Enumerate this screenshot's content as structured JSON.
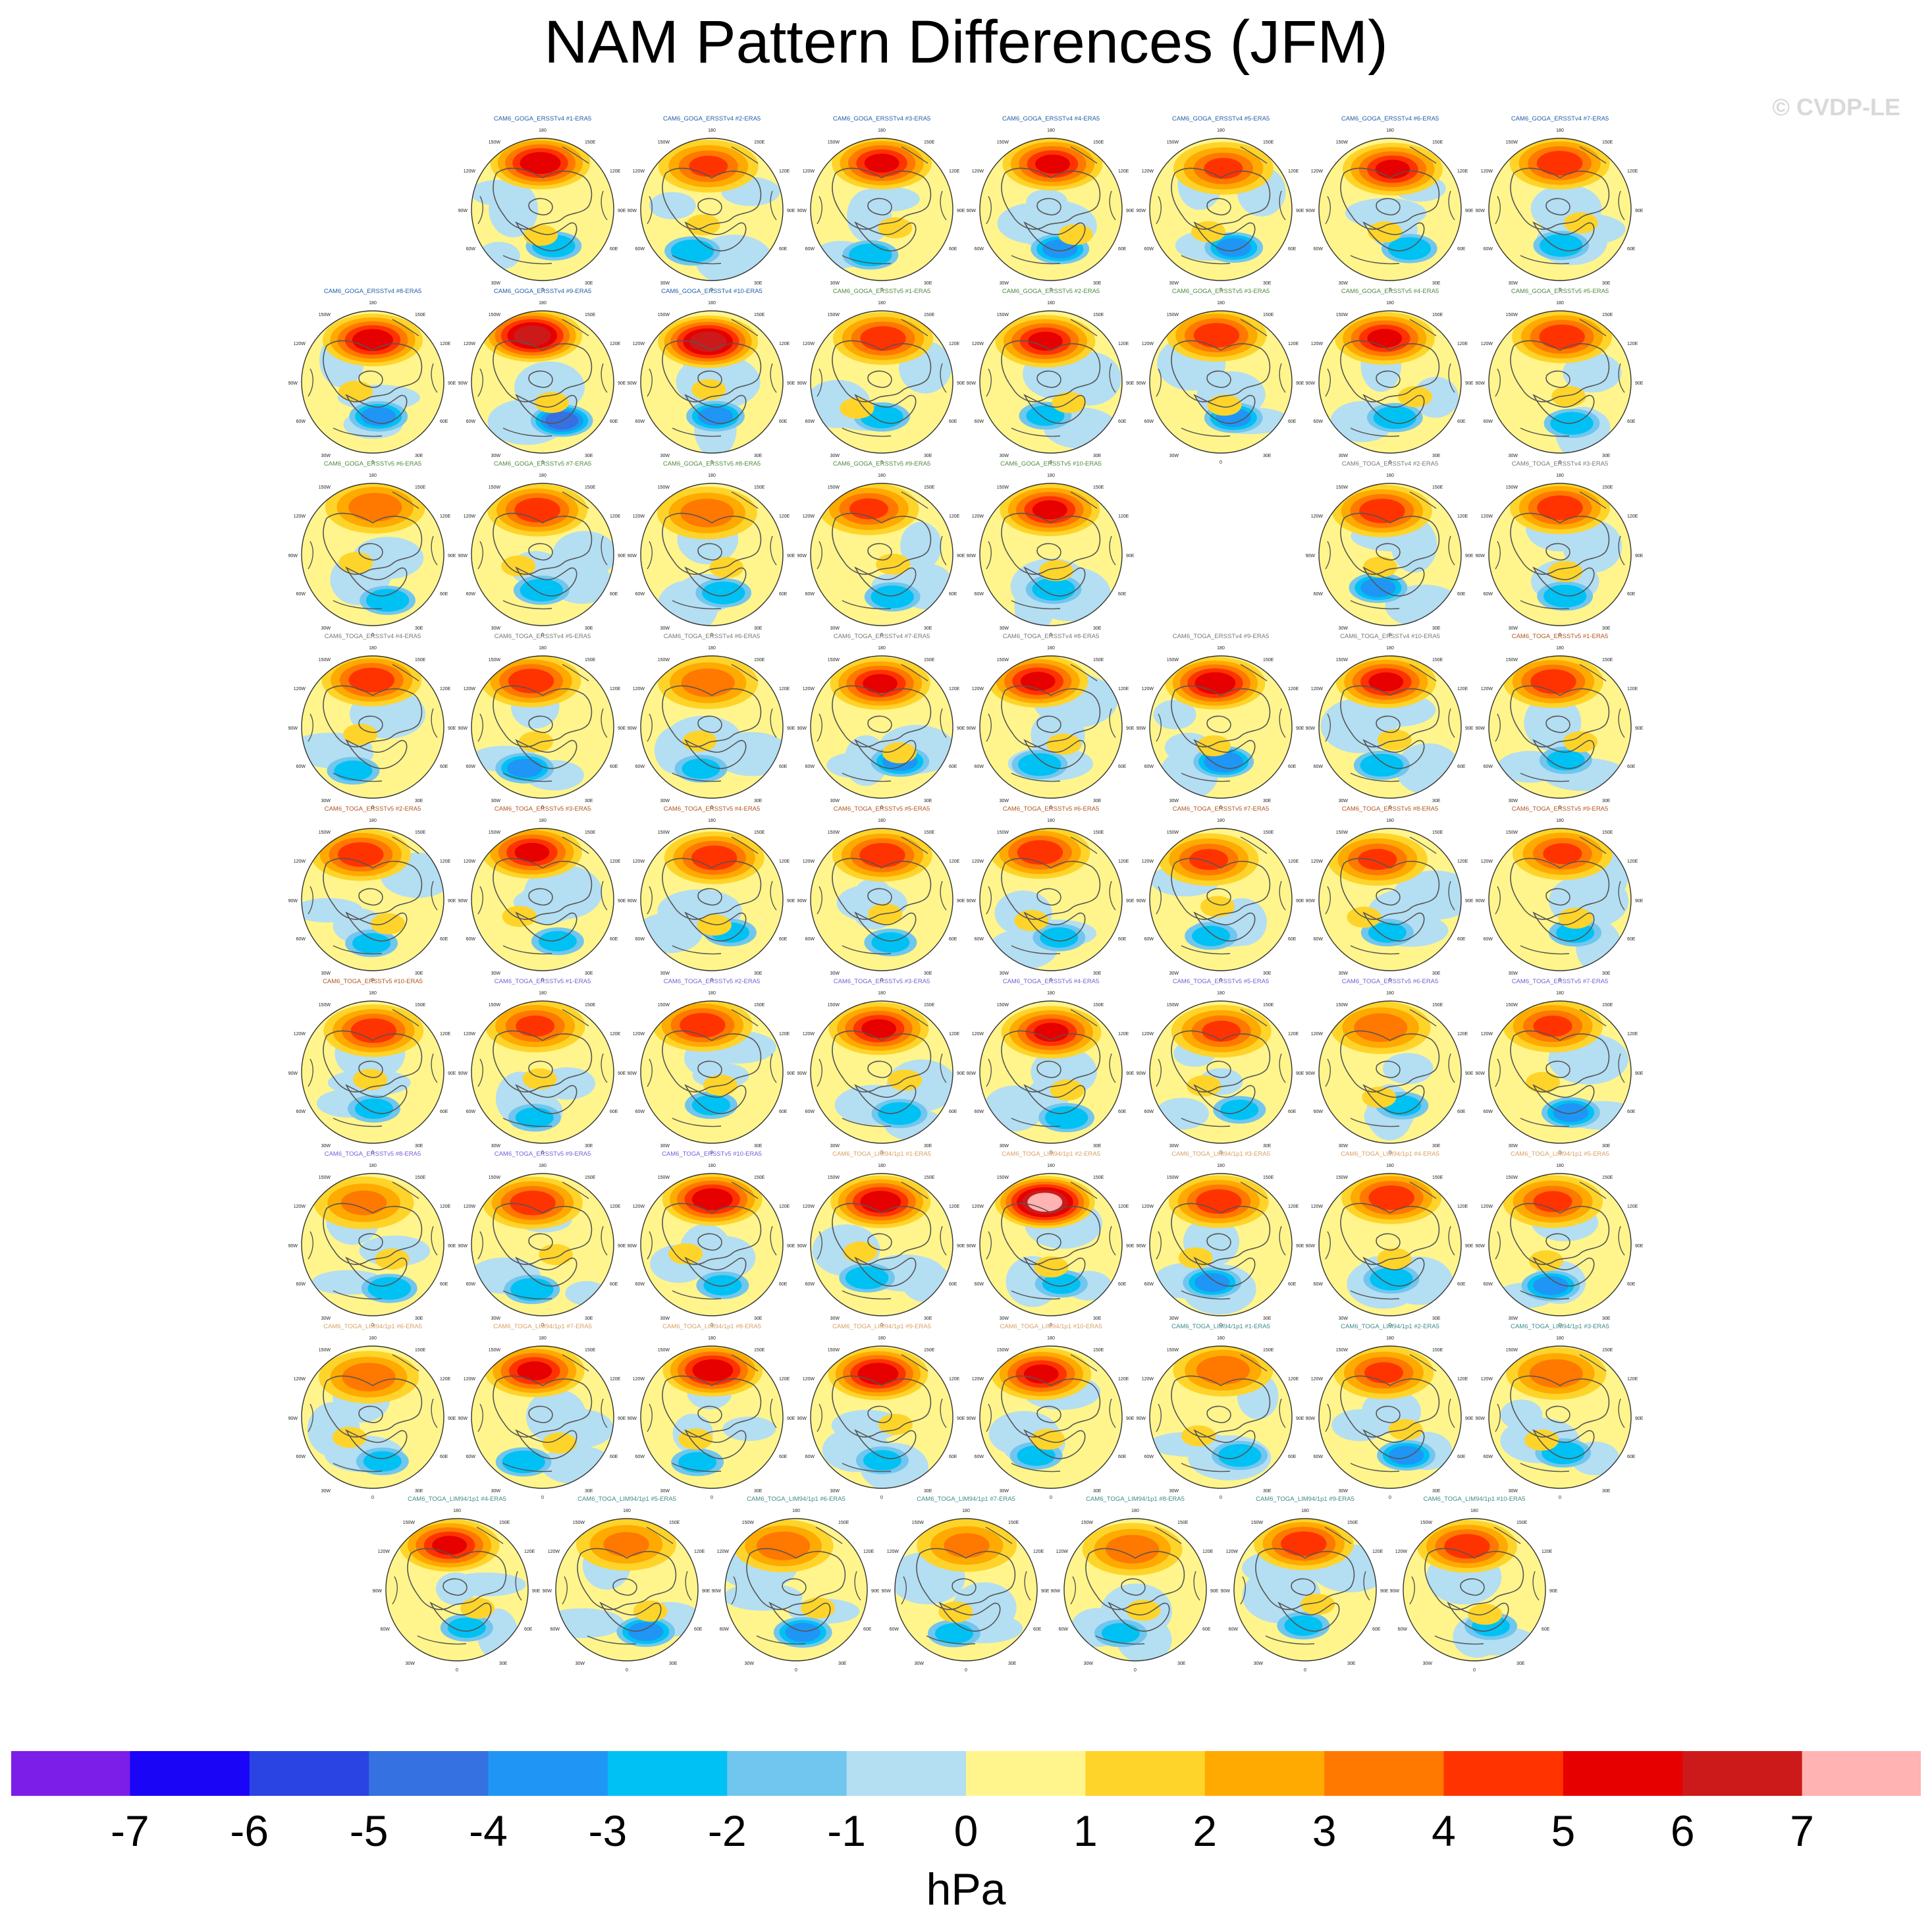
{
  "title": "NAM Pattern Differences (JFM)",
  "watermark": "© CVDP-LE",
  "units": "hPa",
  "colorbar": {
    "ticks": [
      "-7",
      "-6",
      "-5",
      "-4",
      "-3",
      "-2",
      "-1",
      "0",
      "1",
      "2",
      "3",
      "4",
      "5",
      "6",
      "7"
    ],
    "colors": [
      "#7d1de8",
      "#1a05f7",
      "#2a44e3",
      "#3571e0",
      "#1f96f5",
      "#00c1f4",
      "#70c6ee",
      "#b4def2",
      "#fff58c",
      "#ffd42a",
      "#ffaa00",
      "#ff7800",
      "#ff3300",
      "#e60000",
      "#cc1a1a",
      "#ffb3b3"
    ]
  },
  "map_labels": {
    "top": "180",
    "bottom": "0",
    "tl": "150W",
    "tr": "150E",
    "ul": "120W",
    "ur": "120E",
    "ml": "90W",
    "mr": "90E",
    "ll": "60W",
    "lr": "60E",
    "bl": "30W",
    "br": "30E"
  },
  "chart_data": {
    "type": "heatmap",
    "title": "NAM Pattern Differences (JFM)",
    "colorbar_label": "hPa",
    "colorbar_range": [
      -7,
      7
    ],
    "colorbar_interval": 1,
    "projection": "north polar stereographic",
    "panels": [
      {
        "label": "CAM6_GOGA_ERSSTv4 #1-ERA5",
        "group": "goga4",
        "max": 5.5,
        "min": -2.5
      },
      {
        "label": "CAM6_GOGA_ERSSTv4 #2-ERA5",
        "group": "goga4",
        "max": 4.0,
        "min": -2.5
      },
      {
        "label": "CAM6_GOGA_ERSSTv4 #3-ERA5",
        "group": "goga4",
        "max": 5.0,
        "min": -2.5
      },
      {
        "label": "CAM6_GOGA_ERSSTv4 #4-ERA5",
        "group": "goga4",
        "max": 5.0,
        "min": -3.0
      },
      {
        "label": "CAM6_GOGA_ERSSTv4 #5-ERA5",
        "group": "goga4",
        "max": 4.0,
        "min": -3.0
      },
      {
        "label": "CAM6_GOGA_ERSSTv4 #6-ERA5",
        "group": "goga4",
        "max": 5.0,
        "min": -2.5
      },
      {
        "label": "CAM6_GOGA_ERSSTv4 #7-ERA5",
        "group": "goga4",
        "max": 4.5,
        "min": -2.5
      },
      {
        "label": "CAM6_GOGA_ERSSTv4 #8-ERA5",
        "group": "goga4",
        "max": 5.5,
        "min": -3.0
      },
      {
        "label": "CAM6_GOGA_ERSSTv4 #9-ERA5",
        "group": "goga4",
        "max": 6.5,
        "min": -4.0
      },
      {
        "label": "CAM6_GOGA_ERSSTv4 #10-ERA5",
        "group": "goga4",
        "max": 6.5,
        "min": -3.0
      },
      {
        "label": "CAM6_GOGA_ERSSTv5 #1-ERA5",
        "group": "goga5",
        "max": 4.5,
        "min": -2.5
      },
      {
        "label": "CAM6_GOGA_ERSSTv5 #2-ERA5",
        "group": "goga5",
        "max": 5.0,
        "min": -2.0
      },
      {
        "label": "CAM6_GOGA_ERSSTv5 #3-ERA5",
        "group": "goga5",
        "max": 4.5,
        "min": -3.0
      },
      {
        "label": "CAM6_GOGA_ERSSTv5 #4-ERA5",
        "group": "goga5",
        "max": 5.0,
        "min": -2.5
      },
      {
        "label": "CAM6_GOGA_ERSSTv5 #5-ERA5",
        "group": "goga5",
        "max": 4.5,
        "min": -2.5
      },
      {
        "label": "CAM6_GOGA_ERSSTv5 #6-ERA5",
        "group": "goga5",
        "max": 3.5,
        "min": -2.5
      },
      {
        "label": "CAM6_GOGA_ERSSTv5 #7-ERA5",
        "group": "goga5",
        "max": 4.5,
        "min": -2.5
      },
      {
        "label": "CAM6_GOGA_ERSSTv5 #8-ERA5",
        "group": "goga5",
        "max": 3.5,
        "min": -2.5
      },
      {
        "label": "CAM6_GOGA_ERSSTv5 #9-ERA5",
        "group": "goga5",
        "max": 4.0,
        "min": -2.5
      },
      {
        "label": "CAM6_GOGA_ERSSTv5 #10-ERA5",
        "group": "goga5",
        "max": 5.0,
        "min": -2.5
      },
      {
        "label": "CAM6_TOGA_ERSSTv4 #2-ERA5",
        "group": "toga4",
        "max": 4.5,
        "min": -3.0
      },
      {
        "label": "CAM6_TOGA_ERSSTv4 #3-ERA5",
        "group": "toga4",
        "max": 4.5,
        "min": -2.5
      },
      {
        "label": "CAM6_TOGA_ERSSTv4 #4-ERA5",
        "group": "toga4",
        "max": 4.5,
        "min": -2.0
      },
      {
        "label": "CAM6_TOGA_ERSSTv4 #5-ERA5",
        "group": "toga4",
        "max": 4.5,
        "min": -3.0
      },
      {
        "label": "CAM6_TOGA_ERSSTv4 #6-ERA5",
        "group": "toga4",
        "max": 3.5,
        "min": -2.0
      },
      {
        "label": "CAM6_TOGA_ERSSTv4 #7-ERA5",
        "group": "toga4",
        "max": 5.0,
        "min": -3.0
      },
      {
        "label": "CAM6_TOGA_ERSSTv4 #8-ERA5",
        "group": "toga4",
        "max": 5.0,
        "min": -2.5
      },
      {
        "label": "CAM6_TOGA_ERSSTv4 #9-ERA5",
        "group": "toga4",
        "max": 5.5,
        "min": -3.5
      },
      {
        "label": "CAM6_TOGA_ERSSTv4 #10-ERA5",
        "group": "toga4",
        "max": 5.0,
        "min": -2.5
      },
      {
        "label": "CAM6_TOGA_ERSSTv5 #1-ERA5",
        "group": "toga5",
        "max": 4.5,
        "min": -2.0
      },
      {
        "label": "CAM6_TOGA_ERSSTv5 #2-ERA5",
        "group": "toga5",
        "max": 4.5,
        "min": -2.0
      },
      {
        "label": "CAM6_TOGA_ERSSTv5 #3-ERA5",
        "group": "toga5",
        "max": 5.0,
        "min": -2.0
      },
      {
        "label": "CAM6_TOGA_ERSSTv5 #4-ERA5",
        "group": "toga5",
        "max": 4.5,
        "min": -2.0
      },
      {
        "label": "CAM6_TOGA_ERSSTv5 #5-ERA5",
        "group": "toga5",
        "max": 4.5,
        "min": -2.0
      },
      {
        "label": "CAM6_TOGA_ERSSTv5 #6-ERA5",
        "group": "toga5",
        "max": 4.5,
        "min": -2.0
      },
      {
        "label": "CAM6_TOGA_ERSSTv5 #7-ERA5",
        "group": "toga5",
        "max": 4.0,
        "min": -2.0
      },
      {
        "label": "CAM6_TOGA_ERSSTv5 #8-ERA5",
        "group": "toga5",
        "max": 4.0,
        "min": -2.0
      },
      {
        "label": "CAM6_TOGA_ERSSTv5 #9-ERA5",
        "group": "toga5",
        "max": 4.0,
        "min": -2.0
      },
      {
        "label": "CAM6_TOGA_ERSSTv5 #10-ERA5",
        "group": "toga5",
        "max": 4.5,
        "min": -2.0
      },
      {
        "label": "CAM6_TOGA_ERSSTv5 #1-ERA5",
        "group": "togaB",
        "max": 4.0,
        "min": -2.0
      },
      {
        "label": "CAM6_TOGA_ERSSTv5 #2-ERA5",
        "group": "togaB",
        "max": 4.5,
        "min": -2.0
      },
      {
        "label": "CAM6_TOGA_ERSSTv5 #3-ERA5",
        "group": "togaB",
        "max": 5.0,
        "min": -2.5
      },
      {
        "label": "CAM6_TOGA_ERSSTv5 #4-ERA5",
        "group": "togaB",
        "max": 5.0,
        "min": -2.5
      },
      {
        "label": "CAM6_TOGA_ERSSTv5 #5-ERA5",
        "group": "togaB",
        "max": 4.0,
        "min": -2.0
      },
      {
        "label": "CAM6_TOGA_ERSSTv5 #6-ERA5",
        "group": "togaB",
        "max": 3.5,
        "min": -2.0
      },
      {
        "label": "CAM6_TOGA_ERSSTv5 #7-ERA5",
        "group": "togaB",
        "max": 4.0,
        "min": -3.0
      },
      {
        "label": "CAM6_TOGA_ERSSTv5 #8-ERA5",
        "group": "togaB",
        "max": 3.0,
        "min": -2.5
      },
      {
        "label": "CAM6_TOGA_ERSSTv5 #9-ERA5",
        "group": "togaB",
        "max": 4.5,
        "min": -2.5
      },
      {
        "label": "CAM6_TOGA_ERSSTv5 #10-ERA5",
        "group": "togaB",
        "max": 5.5,
        "min": -2.0
      },
      {
        "label": "CAM6_TOGA_LIM94/1p1 #1-ERA5",
        "group": "lim",
        "max": 5.5,
        "min": -2.5
      },
      {
        "label": "CAM6_TOGA_LIM94/1p1 #2-ERA5",
        "group": "lim",
        "max": 7.5,
        "min": -2.0
      },
      {
        "label": "CAM6_TOGA_LIM94/1p1 #3-ERA5",
        "group": "lim",
        "max": 4.5,
        "min": -3.0
      },
      {
        "label": "CAM6_TOGA_LIM94/1p1 #4-ERA5",
        "group": "lim",
        "max": 4.5,
        "min": -2.5
      },
      {
        "label": "CAM6_TOGA_LIM94/1p1 #5-ERA5",
        "group": "lim",
        "max": 4.0,
        "min": -3.0
      },
      {
        "label": "CAM6_TOGA_LIM94/1p1 #6-ERA5",
        "group": "lim",
        "max": 3.5,
        "min": -2.0
      },
      {
        "label": "CAM6_TOGA_LIM94/1p1 #7-ERA5",
        "group": "lim",
        "max": 5.0,
        "min": -2.5
      },
      {
        "label": "CAM6_TOGA_LIM94/1p1 #8-ERA5",
        "group": "lim",
        "max": 5.5,
        "min": -2.0
      },
      {
        "label": "CAM6_TOGA_LIM94/1p1 #9-ERA5",
        "group": "lim",
        "max": 5.5,
        "min": -2.0
      },
      {
        "label": "CAM6_TOGA_LIM94/1p1 #10-ERA5",
        "group": "lim",
        "max": 5.0,
        "min": -2.0
      },
      {
        "label": "CAM6_TOGA_LIM94/1p1 #1-ERA5",
        "group": "limB",
        "max": 3.5,
        "min": -2.5
      },
      {
        "label": "CAM6_TOGA_LIM94/1p1 #2-ERA5",
        "group": "limB",
        "max": 4.0,
        "min": -3.0
      },
      {
        "label": "CAM6_TOGA_LIM94/1p1 #3-ERA5",
        "group": "limB",
        "max": 3.5,
        "min": -2.5
      },
      {
        "label": "CAM6_TOGA_LIM94/1p1 #4-ERA5",
        "group": "limB",
        "max": 5.0,
        "min": -2.0
      },
      {
        "label": "CAM6_TOGA_LIM94/1p1 #5-ERA5",
        "group": "limB",
        "max": 3.0,
        "min": -3.0
      },
      {
        "label": "CAM6_TOGA_LIM94/1p1 #6-ERA5",
        "group": "limB",
        "max": 3.5,
        "min": -3.0
      },
      {
        "label": "CAM6_TOGA_LIM94/1p1 #7-ERA5",
        "group": "limB",
        "max": 3.0,
        "min": -2.0
      },
      {
        "label": "CAM6_TOGA_LIM94/1p1 #8-ERA5",
        "group": "limB",
        "max": 3.5,
        "min": -2.0
      },
      {
        "label": "CAM6_TOGA_LIM94/1p1 #9-ERA5",
        "group": "limB",
        "max": 4.5,
        "min": -2.0
      },
      {
        "label": "CAM6_TOGA_LIM94/1p1 #10-ERA5",
        "group": "limB",
        "max": 4.5,
        "min": -2.0
      }
    ],
    "label_colors": {
      "goga4": "#1f5fa8",
      "goga5": "#4f8a3c",
      "toga4": "#777777",
      "toga5": "#b3541e",
      "togaB": "#7a5cd6",
      "lim": "#d9a066",
      "limB": "#3c8a8a"
    }
  }
}
